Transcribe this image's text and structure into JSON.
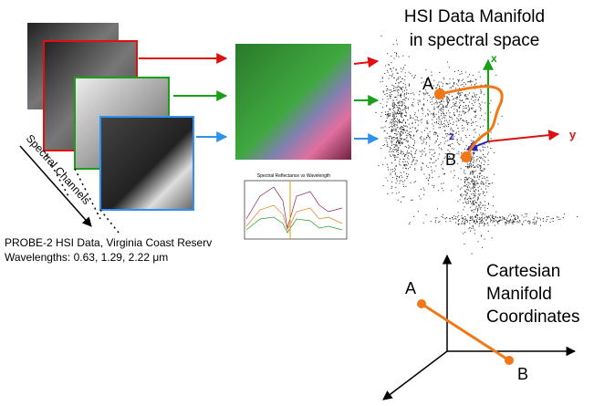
{
  "header": {
    "title_line1": "HSI Data Manifold",
    "title_line2": "in spectral space"
  },
  "manifold": {
    "point_a": "A",
    "point_b": "B",
    "axis_x": "x",
    "axis_y": "y",
    "axis_z": "z"
  },
  "channels_label": "Spectral Channels",
  "spectrum_plot_title": "Spectral Reflectance vs Wavelength",
  "caption": {
    "line1": "PROBE-2 HSI Data, Virginia Coast Reserv",
    "line2": "Wavelengths: 0.63, 1.29, 2.22 μm"
  },
  "coordinates": {
    "label_line1": "Cartesian",
    "label_line2": "Manifold",
    "label_line3": "Coordinates",
    "point_a": "A",
    "point_b": "B"
  }
}
